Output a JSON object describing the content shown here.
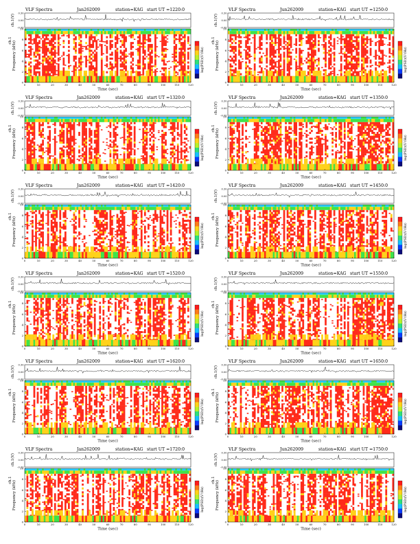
{
  "page_title": "VLF Spectra grid",
  "colors": {
    "spectrogram_high": "#ff2a1a",
    "spectrogram_mid": "#ffd21a",
    "spectrogram_low": "#3ee34a",
    "band_top": "#2bd1ff",
    "colorbar": [
      "#0a0a7a",
      "#0a3cff",
      "#15c0ff",
      "#2fe07a",
      "#b8f02a",
      "#ffd21a",
      "#ff7a1a",
      "#ff1a1a"
    ]
  },
  "chart_data": [
    {
      "type": "heatmap",
      "title": "VLF Spectra",
      "date": "Jan262009",
      "station": "station=KAG",
      "start": "start  UT  =1220:0",
      "top_ylabel": "ch.1(V)",
      "ylabel": "Frequency  (kHz)",
      "ylabel_ch": "ch.1",
      "xlabel": "Time  (sec)",
      "colorbar_label": "log(PSD)(V²/Hz)",
      "xlim": [
        0,
        120
      ],
      "ylim": [
        0,
        10
      ],
      "top_ylim": [
        -0.3,
        0.3
      ],
      "x_ticks": [
        0,
        10,
        20,
        30,
        40,
        50,
        60,
        70,
        80,
        90,
        100,
        110,
        120
      ],
      "y_ticks": [
        0,
        2,
        4,
        6,
        8,
        10
      ],
      "top_ticks": [
        "0.30",
        "0.00",
        "-0.30"
      ]
    },
    {
      "type": "heatmap",
      "title": "VLF Spectra",
      "date": "Jun262009",
      "station": "station=KAG",
      "start": "start  UT  =1250:0",
      "top_ylabel": "ch.1(V)",
      "ylabel": "Frequency  (kHz)",
      "ylabel_ch": "ch.1",
      "xlabel": "Time  (sec)",
      "colorbar_label": "log(PSD)(V²/Hz)",
      "xlim": [
        0,
        120
      ],
      "ylim": [
        0,
        10
      ],
      "top_ylim": [
        -0.3,
        0.3
      ],
      "x_ticks": [
        0,
        10,
        20,
        30,
        40,
        50,
        60,
        70,
        80,
        90,
        100,
        110,
        120
      ],
      "y_ticks": [
        0,
        2,
        4,
        6,
        8,
        10
      ],
      "top_ticks": [
        "0.30",
        "0.00",
        "-0.30"
      ]
    },
    {
      "type": "heatmap",
      "title": "VLF Spectra",
      "date": "Jan262009",
      "station": "station=KAG",
      "start": "start  UT  =1320:0",
      "top_ylabel": "ch.1(V)",
      "ylabel": "Frequency  (kHz)",
      "ylabel_ch": "ch.1",
      "xlabel": "Time  (sec)",
      "colorbar_label": "log(PSD)(V²/Hz)",
      "xlim": [
        0,
        120
      ],
      "ylim": [
        0,
        10
      ],
      "top_ylim": [
        -0.3,
        0.3
      ],
      "x_ticks": [
        0,
        10,
        20,
        30,
        40,
        50,
        60,
        70,
        80,
        90,
        100,
        110,
        120
      ],
      "y_ticks": [
        0,
        2,
        4,
        6,
        8,
        10
      ],
      "top_ticks": [
        "0.30",
        "0.00",
        "-0.30"
      ]
    },
    {
      "type": "heatmap",
      "title": "VLF Spectra",
      "date": "Jun262009",
      "station": "station=KAG",
      "start": "start  UT  =1350:0",
      "top_ylabel": "ch.1(V)",
      "ylabel": "Frequency  (kHz)",
      "ylabel_ch": "ch.1",
      "xlabel": "Time  (sec)",
      "colorbar_label": "log(PSD)(V²/Hz)",
      "xlim": [
        0,
        120
      ],
      "ylim": [
        0,
        10
      ],
      "top_ylim": [
        -0.3,
        0.3
      ],
      "x_ticks": [
        0,
        10,
        20,
        30,
        40,
        50,
        60,
        70,
        80,
        90,
        100,
        110,
        120
      ],
      "y_ticks": [
        0,
        2,
        4,
        6,
        8,
        10
      ],
      "top_ticks": [
        "0.30",
        "0.00",
        "-0.30"
      ]
    },
    {
      "type": "heatmap",
      "title": "VLF Spectra",
      "date": "Jan262009",
      "station": "station=KAG",
      "start": "start  UT  =1420:0",
      "top_ylabel": "ch.1(V)",
      "ylabel": "Frequency  (kHz)",
      "ylabel_ch": "ch.1",
      "xlabel": "Time  (sec)",
      "colorbar_label": "log(PSD)(V²/Hz)",
      "xlim": [
        0,
        120
      ],
      "ylim": [
        0,
        10
      ],
      "top_ylim": [
        -0.3,
        0.3
      ],
      "x_ticks": [
        0,
        10,
        20,
        30,
        40,
        50,
        60,
        70,
        80,
        90,
        100,
        110,
        120
      ],
      "y_ticks": [
        0,
        2,
        4,
        6,
        8,
        10
      ],
      "top_ticks": [
        "0.30",
        "0.00",
        "-0.30"
      ]
    },
    {
      "type": "heatmap",
      "title": "VLF Spectra",
      "date": "Jun262009",
      "station": "station=KAG",
      "start": "start  UT  =1450:0",
      "top_ylabel": "ch.1(V)",
      "ylabel": "Frequency  (kHz)",
      "ylabel_ch": "ch.1",
      "xlabel": "Time  (sec)",
      "colorbar_label": "log(PSD)(V²/Hz)",
      "xlim": [
        0,
        120
      ],
      "ylim": [
        0,
        10
      ],
      "top_ylim": [
        -0.3,
        0.3
      ],
      "x_ticks": [
        0,
        10,
        20,
        30,
        40,
        50,
        60,
        70,
        80,
        90,
        100,
        110,
        120
      ],
      "y_ticks": [
        0,
        2,
        4,
        6,
        8,
        10
      ],
      "top_ticks": [
        "0.30",
        "0.00",
        "-0.30"
      ]
    },
    {
      "type": "heatmap",
      "title": "VLF Spectra",
      "date": "Jan262009",
      "station": "station=KAG",
      "start": "start  UT  =1520:0",
      "top_ylabel": "ch.1(V)",
      "ylabel": "Frequency  (kHz)",
      "ylabel_ch": "ch.1",
      "xlabel": "Time  (sec)",
      "colorbar_label": "log(PSD)(V²/Hz)",
      "xlim": [
        0,
        120
      ],
      "ylim": [
        0,
        10
      ],
      "top_ylim": [
        -0.3,
        0.3
      ],
      "x_ticks": [
        0,
        10,
        20,
        30,
        40,
        50,
        60,
        70,
        80,
        90,
        100,
        110,
        120
      ],
      "y_ticks": [
        0,
        2,
        4,
        6,
        8,
        10
      ],
      "top_ticks": [
        "0.30",
        "0.00",
        "-0.30"
      ]
    },
    {
      "type": "heatmap",
      "title": "VLF Spectra",
      "date": "Jun262009",
      "station": "station=KAG",
      "start": "start  UT  =1550:0",
      "top_ylabel": "ch.1(V)",
      "ylabel": "Frequency  (kHz)",
      "ylabel_ch": "ch.1",
      "xlabel": "Time  (sec)",
      "colorbar_label": "log(PSD)(V²/Hz)",
      "xlim": [
        0,
        120
      ],
      "ylim": [
        0,
        10
      ],
      "top_ylim": [
        -0.3,
        0.3
      ],
      "x_ticks": [
        0,
        10,
        20,
        30,
        40,
        50,
        60,
        70,
        80,
        90,
        100,
        110,
        120
      ],
      "y_ticks": [
        0,
        2,
        4,
        6,
        8,
        10
      ],
      "top_ticks": [
        "0.30",
        "0.00",
        "-0.30"
      ]
    },
    {
      "type": "heatmap",
      "title": "VLF Spectra",
      "date": "Jan262009",
      "station": "station=KAG",
      "start": "start  UT  =1620:0",
      "top_ylabel": "ch.1(V)",
      "ylabel": "Frequency  (kHz)",
      "ylabel_ch": "ch.1",
      "xlabel": "Time  (sec)",
      "colorbar_label": "log(PSD)(V²/Hz)",
      "xlim": [
        0,
        120
      ],
      "ylim": [
        0,
        10
      ],
      "top_ylim": [
        -0.3,
        0.3
      ],
      "x_ticks": [
        0,
        10,
        20,
        30,
        40,
        50,
        60,
        70,
        80,
        90,
        100,
        110,
        120
      ],
      "y_ticks": [
        0,
        2,
        4,
        6,
        8,
        10
      ],
      "top_ticks": [
        "0.30",
        "0.00",
        "-0.30"
      ]
    },
    {
      "type": "heatmap",
      "title": "VLF Spectra",
      "date": "Jun262009",
      "station": "station=KAG",
      "start": "start  UT  =1650:0",
      "top_ylabel": "ch.1(V)",
      "ylabel": "Frequency  (kHz)",
      "ylabel_ch": "ch.1",
      "xlabel": "Time  (sec)",
      "colorbar_label": "log(PSD)(V²/Hz)",
      "xlim": [
        0,
        120
      ],
      "ylim": [
        0,
        10
      ],
      "top_ylim": [
        -0.3,
        0.3
      ],
      "x_ticks": [
        0,
        10,
        20,
        30,
        40,
        50,
        60,
        70,
        80,
        90,
        100,
        110,
        120
      ],
      "y_ticks": [
        0,
        2,
        4,
        6,
        8,
        10
      ],
      "top_ticks": [
        "0.30",
        "0.00",
        "-0.30"
      ]
    },
    {
      "type": "heatmap",
      "title": "VLF Spectra",
      "date": "Jan262009",
      "station": "station=KAG",
      "start": "start  UT  =1720:0",
      "top_ylabel": "ch.1(V)",
      "ylabel": "Frequency  (kHz)",
      "ylabel_ch": "ch.1",
      "xlabel": "Time  (sec)",
      "colorbar_label": "log(PSD)(V²/Hz)",
      "xlim": [
        0,
        120
      ],
      "ylim": [
        0,
        10
      ],
      "top_ylim": [
        -0.3,
        0.3
      ],
      "x_ticks": [
        0,
        10,
        20,
        30,
        40,
        50,
        60,
        70,
        80,
        90,
        100,
        110,
        120
      ],
      "y_ticks": [
        0,
        2,
        4,
        6,
        8,
        10
      ],
      "top_ticks": [
        "0.30",
        "0.00",
        "-0.30"
      ]
    },
    {
      "type": "heatmap",
      "title": "VLF Spectra",
      "date": "Jun262009",
      "station": "station=KAG",
      "start": "start  UT  =1750:0",
      "top_ylabel": "ch.1(V)",
      "ylabel": "Frequency  (kHz)",
      "ylabel_ch": "ch.1",
      "xlabel": "Time  (sec)",
      "colorbar_label": "log(PSD)(V²/Hz)",
      "xlim": [
        0,
        120
      ],
      "ylim": [
        0,
        10
      ],
      "top_ylim": [
        -0.3,
        0.3
      ],
      "x_ticks": [
        0,
        10,
        20,
        30,
        40,
        50,
        60,
        70,
        80,
        90,
        100,
        110,
        120
      ],
      "y_ticks": [
        0,
        2,
        4,
        6,
        8,
        10
      ],
      "top_ticks": [
        "0.30",
        "0.00",
        "-0.30"
      ]
    }
  ]
}
